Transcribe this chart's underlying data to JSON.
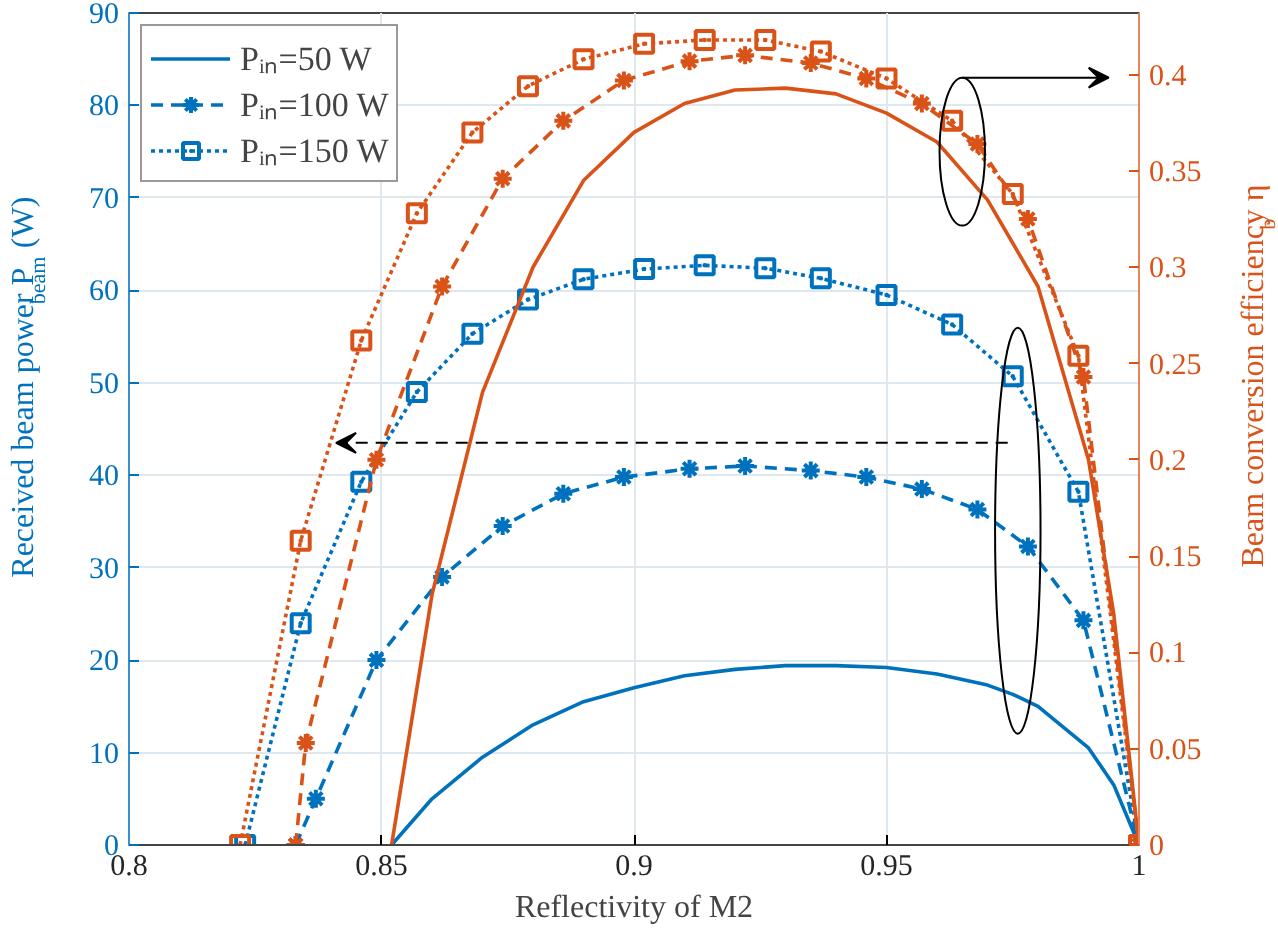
{
  "chart_data": {
    "type": "line",
    "xlabel": "Reflectivity of M2",
    "ylabel": "Received beam power P$_{beam}$ (W)",
    "y2label": "Beam conversion efficiency η$_{b}$",
    "xlim": [
      0.8,
      1.0
    ],
    "xticks": [
      0.8,
      0.85,
      0.9,
      0.95,
      1
    ],
    "ylim": [
      0,
      90
    ],
    "yticks": [
      0,
      10,
      20,
      30,
      40,
      50,
      60,
      70,
      80,
      90
    ],
    "y2lim": [
      0,
      0.432
    ],
    "y2ticks": [
      0,
      0.05,
      0.1,
      0.15,
      0.2,
      0.25,
      0.3,
      0.35,
      0.4
    ],
    "grid": true,
    "legend": "top left",
    "series": [
      {
        "name": "Pᵢₙ=50 W",
        "color": "#0072bd",
        "line_style": "solid",
        "marker": "none",
        "x": [
          0.852,
          0.86,
          0.87,
          0.88,
          0.89,
          0.9,
          0.91,
          0.92,
          0.93,
          0.94,
          0.95,
          0.96,
          0.97,
          0.975,
          0.98,
          0.99,
          0.995,
          1.0
        ],
        "values": [
          0,
          5,
          9.5,
          13,
          15.5,
          17,
          18.3,
          19,
          19.4,
          19.4,
          19.2,
          18.5,
          17.3,
          16.3,
          15,
          10.5,
          6.5,
          0
        ]
      },
      {
        "name": "Pᵢₙ=100 W",
        "color": "#0072bd",
        "line_style": "dashed",
        "marker": "cross",
        "x": [
          0.833,
          0.837,
          0.849,
          0.862,
          0.874,
          0.886,
          0.898,
          0.911,
          0.922,
          0.935,
          0.946,
          0.957,
          0.968,
          0.978,
          0.989,
          1.0
        ],
        "values": [
          0,
          5,
          20,
          29,
          34.5,
          38,
          39.8,
          40.7,
          41,
          40.5,
          39.8,
          38.5,
          36.3,
          32.3,
          24.3,
          0
        ]
      },
      {
        "name": "Pᵢₙ=150 W",
        "color": "#0072bd",
        "line_style": "dotted",
        "marker": "square",
        "x": [
          0.823,
          0.834,
          0.846,
          0.857,
          0.868,
          0.879,
          0.89,
          0.902,
          0.914,
          0.926,
          0.937,
          0.95,
          0.963,
          0.975,
          0.988,
          1.0
        ],
        "values": [
          0,
          24,
          39.3,
          49,
          55.3,
          59,
          61.2,
          62.3,
          62.7,
          62.4,
          61.3,
          59.5,
          56.3,
          50.7,
          38.2,
          0
        ]
      },
      {
        "color": "#d95319",
        "axis": "y2",
        "line_style": "solid",
        "marker": "none",
        "x": [
          0.852,
          0.86,
          0.87,
          0.88,
          0.89,
          0.9,
          0.91,
          0.92,
          0.93,
          0.94,
          0.95,
          0.96,
          0.97,
          0.98,
          0.99,
          0.995,
          1.0
        ],
        "values": [
          0,
          0.13,
          0.235,
          0.3,
          0.345,
          0.37,
          0.385,
          0.392,
          0.393,
          0.39,
          0.38,
          0.365,
          0.335,
          0.29,
          0.2,
          0.12,
          0
        ]
      },
      {
        "color": "#d95319",
        "axis": "y2",
        "line_style": "dashed",
        "marker": "cross",
        "x": [
          0.833,
          0.835,
          0.849,
          0.862,
          0.874,
          0.886,
          0.898,
          0.911,
          0.922,
          0.935,
          0.946,
          0.957,
          0.968,
          0.978,
          0.989,
          1.0
        ],
        "values": [
          0,
          0.053,
          0.2,
          0.29,
          0.346,
          0.376,
          0.397,
          0.407,
          0.41,
          0.406,
          0.398,
          0.385,
          0.364,
          0.325,
          0.243,
          0
        ]
      },
      {
        "color": "#d95319",
        "axis": "y2",
        "line_style": "dotted",
        "marker": "square",
        "x": [
          0.822,
          0.834,
          0.846,
          0.857,
          0.868,
          0.879,
          0.89,
          0.902,
          0.914,
          0.926,
          0.937,
          0.95,
          0.963,
          0.975,
          0.988,
          1.0
        ],
        "values": [
          0,
          0.158,
          0.262,
          0.328,
          0.37,
          0.394,
          0.408,
          0.416,
          0.418,
          0.418,
          0.412,
          0.398,
          0.376,
          0.338,
          0.254,
          0
        ]
      }
    ]
  }
}
